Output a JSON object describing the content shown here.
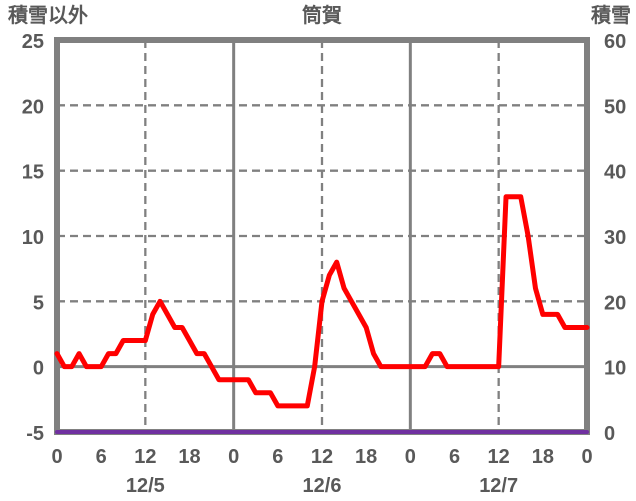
{
  "chart_data": {
    "type": "line",
    "title": "筒賀",
    "left_axis": {
      "label": "積雪以外",
      "min": -5,
      "max": 25,
      "tick_step": 5,
      "ticks": [
        25,
        20,
        15,
        10,
        5,
        0,
        -5
      ],
      "solid_line_at": 0
    },
    "right_axis": {
      "label": "積雪",
      "min": 0,
      "max": 60,
      "tick_step": 10,
      "ticks": [
        60,
        50,
        40,
        30,
        20,
        10,
        0
      ]
    },
    "x_axis": {
      "unit": "hour",
      "start_hour": 0,
      "end_hour": 72,
      "tick_interval_hours": 6,
      "tick_labels": [
        "0",
        "6",
        "12",
        "18",
        "0",
        "6",
        "12",
        "18",
        "0",
        "6",
        "12",
        "18",
        "0"
      ],
      "day_labels": [
        "12/5",
        "12/6",
        "12/7"
      ],
      "solid_gridline_hours": [
        24,
        48
      ],
      "dashed_gridline_hours": [
        12,
        36,
        60
      ]
    },
    "series": [
      {
        "name": "積雪以外",
        "axis": "left",
        "color": "#ff0000",
        "hour_step": 1,
        "values": [
          1,
          0,
          0,
          1,
          0,
          0,
          0,
          1,
          1,
          2,
          2,
          2,
          2,
          4,
          5,
          4,
          3,
          3,
          2,
          1,
          1,
          0,
          -1,
          -1,
          -1,
          -1,
          -1,
          -2,
          -2,
          -2,
          -3,
          -3,
          -3,
          -3,
          -3,
          0,
          5,
          7,
          8,
          6,
          5,
          4,
          3,
          1,
          0,
          0,
          0,
          0,
          0,
          0,
          0,
          1,
          1,
          0,
          0,
          0,
          0,
          0,
          0,
          0,
          0,
          13,
          13,
          13,
          10,
          6,
          4,
          4,
          4,
          3,
          3,
          3,
          3
        ]
      },
      {
        "name": "積雪",
        "axis": "right",
        "color": "#7030a0",
        "hour_step": 1,
        "constant_value": 0
      }
    ],
    "grid": true,
    "legend_position": "none",
    "colors": {
      "grid": "#808080",
      "frame": "#808080",
      "text": "#595959"
    }
  }
}
